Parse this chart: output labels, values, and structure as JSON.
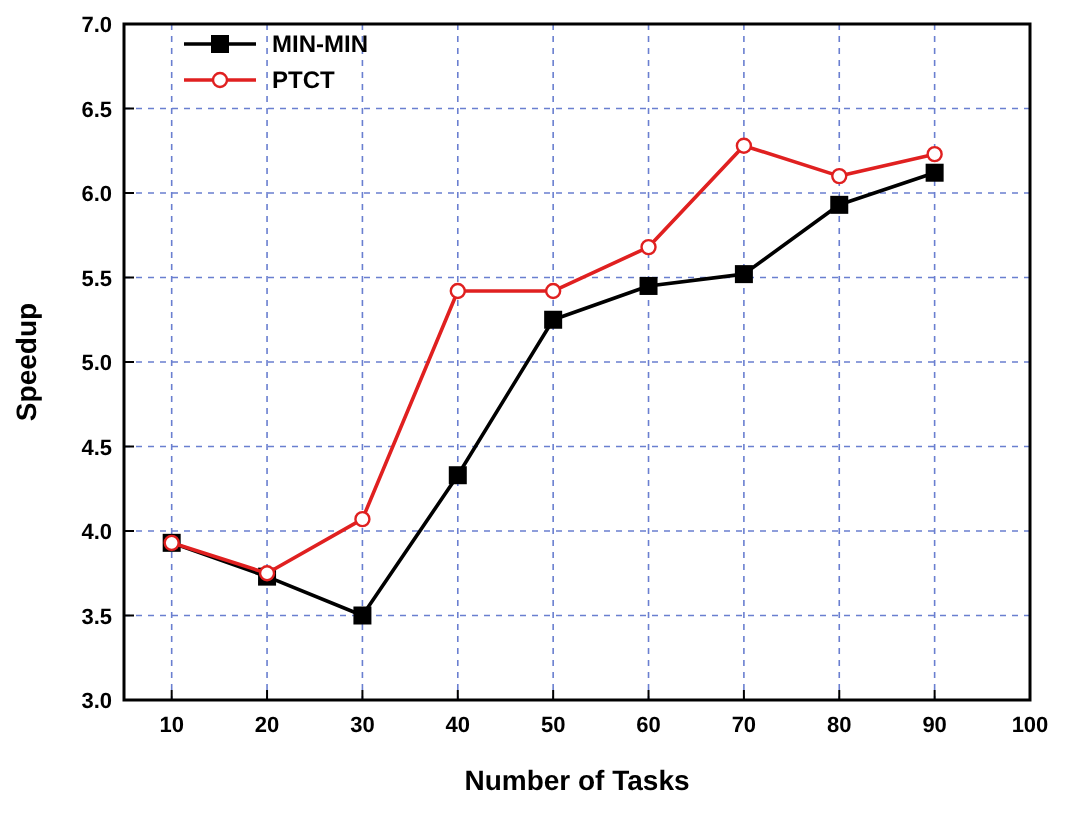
{
  "chart_data": {
    "type": "line",
    "xlabel": "Number of Tasks",
    "ylabel": "Speedup",
    "x": [
      10,
      20,
      30,
      40,
      50,
      60,
      70,
      80,
      90
    ],
    "series": [
      {
        "name": "MIN-MIN",
        "color": "#000000",
        "marker": "square",
        "values": [
          3.93,
          3.73,
          3.5,
          4.33,
          5.25,
          5.45,
          5.52,
          5.93,
          6.12
        ]
      },
      {
        "name": "PTCT",
        "color": "#e02020",
        "marker": "circle",
        "values": [
          3.93,
          3.75,
          4.07,
          5.42,
          5.42,
          5.68,
          6.28,
          6.1,
          6.23
        ]
      }
    ],
    "xlim": [
      5,
      100
    ],
    "xticks": [
      10,
      20,
      30,
      40,
      50,
      60,
      70,
      80,
      90,
      100
    ],
    "ylim": [
      3,
      7
    ],
    "yticks": [
      {
        "value": 3,
        "label": "3.0"
      },
      {
        "value": 3.5,
        "label": "3.5"
      },
      {
        "value": 4,
        "label": "4.0"
      },
      {
        "value": 4.5,
        "label": "4.5"
      },
      {
        "value": 5,
        "label": "5.0"
      },
      {
        "value": 5.5,
        "label": "5.5"
      },
      {
        "value": 6,
        "label": "6.0"
      },
      {
        "value": 6.5,
        "label": "6.5"
      },
      {
        "value": 7,
        "label": "7.0"
      }
    ],
    "grid": true,
    "legend": "top left",
    "line_style": "solid"
  }
}
